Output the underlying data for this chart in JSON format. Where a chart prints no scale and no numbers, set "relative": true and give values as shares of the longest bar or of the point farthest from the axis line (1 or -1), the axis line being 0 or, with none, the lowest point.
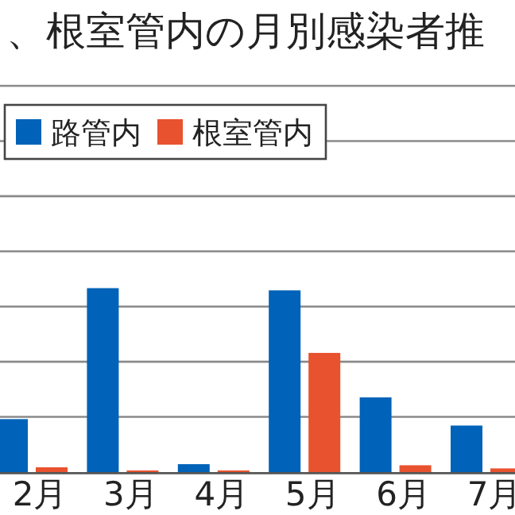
{
  "chart_data": {
    "type": "bar",
    "title": "、根室管内の月別感染者推",
    "relative": true,
    "grid": "y",
    "legend": "top left",
    "categories": [
      "2月",
      "3月",
      "4月",
      "5月",
      "6月",
      "7月"
    ],
    "series": [
      {
        "name": "路管内",
        "color": "#0062b8",
        "values": [
          0.288,
          1,
          0.043,
          0.988,
          0.406,
          0.253
        ]
      },
      {
        "name": "根室管内",
        "color": "#e8522e",
        "values": [
          0.026,
          0.009,
          0.009,
          0.648,
          0.037,
          0.02
        ]
      }
    ]
  }
}
